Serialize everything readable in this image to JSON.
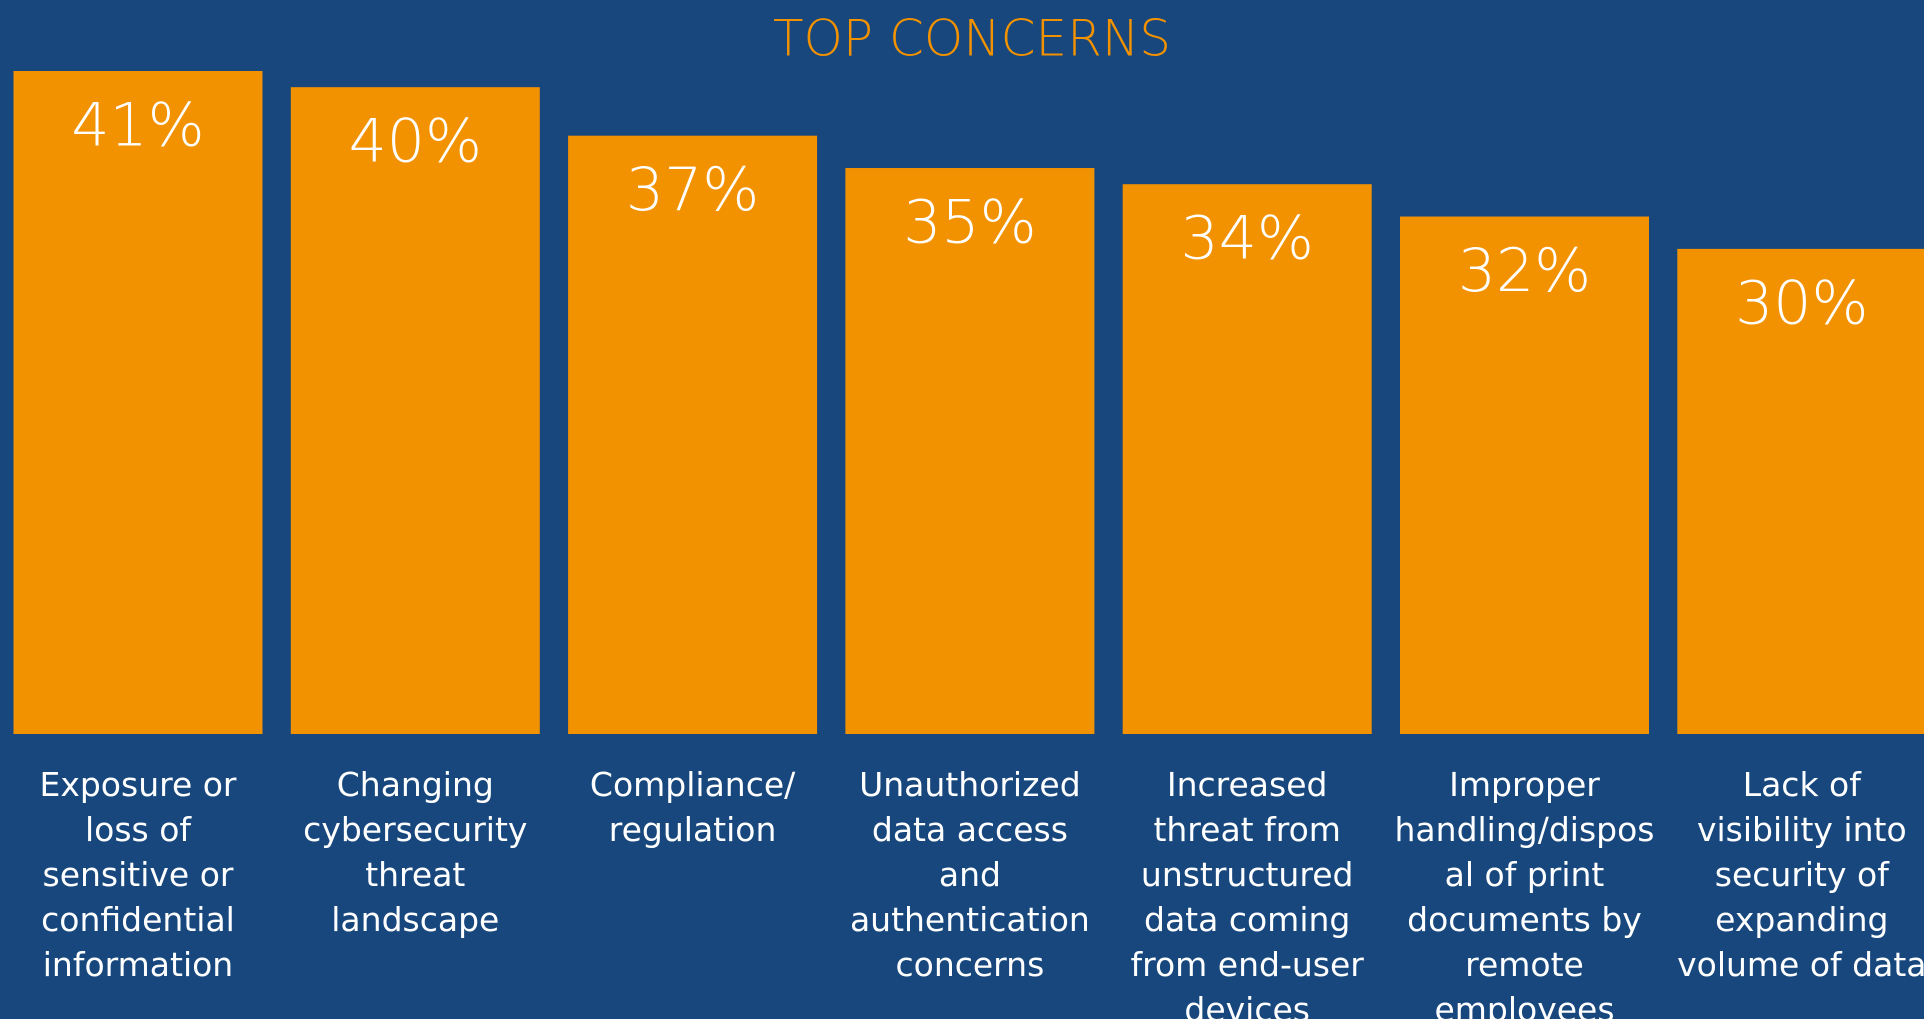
{
  "chart_data": {
    "type": "bar",
    "title": "TOP CONCERNS",
    "categories": [
      "Exposure or loss of sensitive or confidential information",
      "Changing cybersecurity threat landscape",
      "Compliance/ regulation",
      "Unauthorized data access and authentication concerns",
      "Increased threat from unstructured data coming from end-user devices",
      "Improper handling/disposal of print documents by remote employees",
      "Lack of visibility into security of expanding volume of data"
    ],
    "values": [
      41,
      40,
      37,
      35,
      34,
      32,
      30
    ],
    "value_labels": [
      "41%",
      "40%",
      "37%",
      "35%",
      "34%",
      "32%",
      "30%"
    ],
    "color": "#f39200"
  }
}
